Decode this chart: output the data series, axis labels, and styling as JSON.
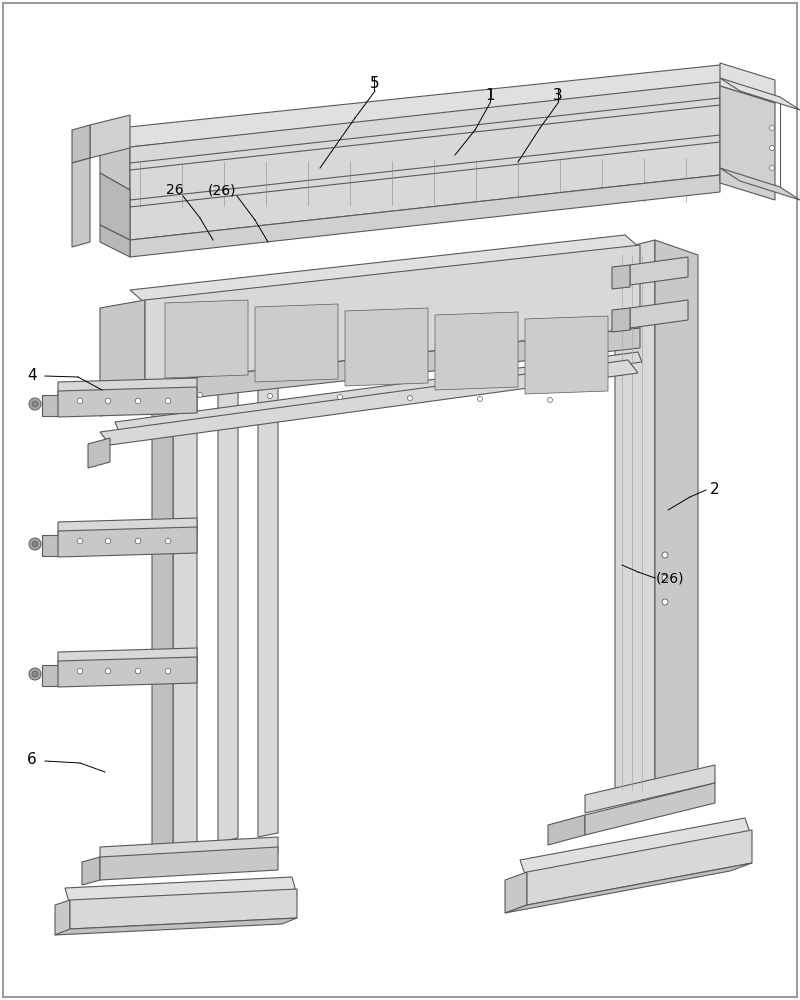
{
  "background_color": "#ffffff",
  "line_color": "#5a5a5a",
  "light_fill": "#e8e8e8",
  "medium_fill": "#d0d0d0",
  "dark_fill": "#b8b8b8",
  "figure_width": 8.0,
  "figure_height": 10.0
}
